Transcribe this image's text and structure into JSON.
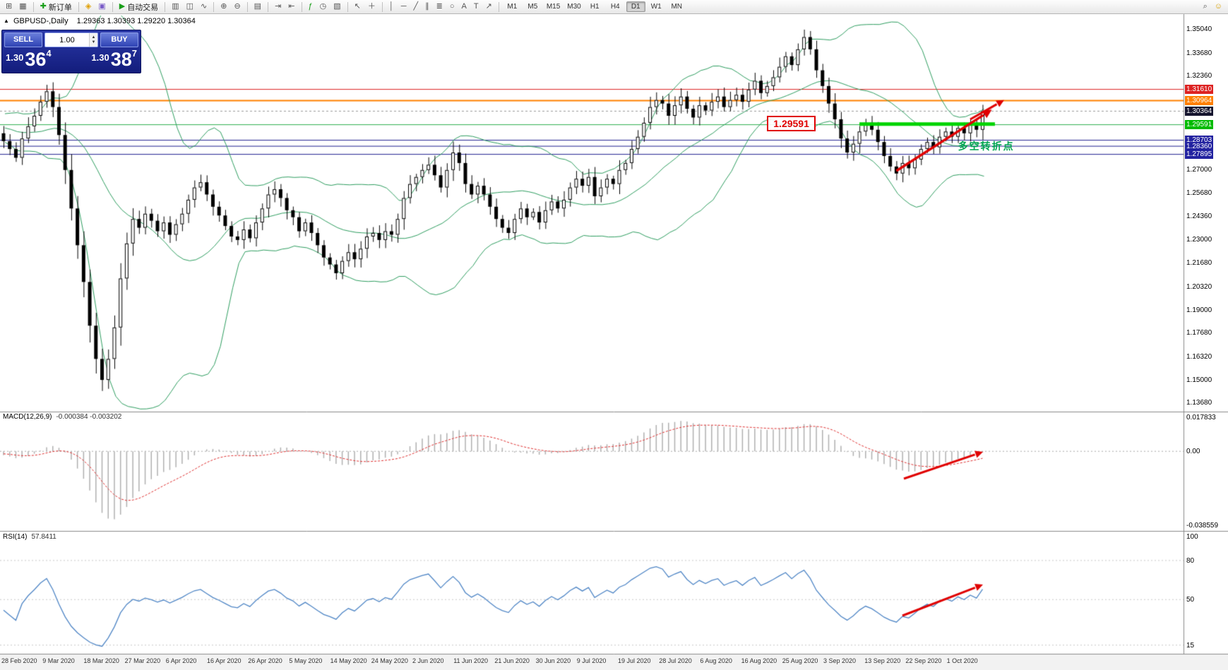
{
  "toolbar": {
    "groups": [
      {
        "items": [
          {
            "name": "new-chart-icon",
            "glyph": "⊞"
          },
          {
            "name": "profiles-icon",
            "glyph": "▦"
          }
        ]
      },
      {
        "items": [
          {
            "name": "new-order-button",
            "glyph": "✚",
            "glyph_color": "#1a9e1a",
            "label": "新订单"
          }
        ]
      },
      {
        "items": [
          {
            "name": "mql5-icon",
            "glyph": "◈",
            "glyph_color": "#e0a000"
          },
          {
            "name": "market-icon",
            "glyph": "▣",
            "glyph_color": "#7a5cc8"
          }
        ]
      },
      {
        "items": [
          {
            "name": "autotrading-button",
            "glyph": "▶",
            "glyph_color": "#1a9e1a",
            "label": "自动交易"
          }
        ]
      },
      {
        "items": [
          {
            "name": "bar-chart-icon",
            "glyph": "▥"
          },
          {
            "name": "candlestick-icon",
            "glyph": "◫"
          },
          {
            "name": "line-chart-icon",
            "glyph": "∿"
          }
        ]
      },
      {
        "items": [
          {
            "name": "zoom-in-icon",
            "glyph": "⊕"
          },
          {
            "name": "zoom-out-icon",
            "glyph": "⊖"
          }
        ]
      },
      {
        "items": [
          {
            "name": "tile-windows-icon",
            "glyph": "▤"
          }
        ]
      },
      {
        "items": [
          {
            "name": "auto-scroll-icon",
            "glyph": "⇥"
          },
          {
            "name": "chart-shift-icon",
            "glyph": "⇤"
          }
        ]
      },
      {
        "items": [
          {
            "name": "indicators-icon",
            "glyph": "ƒ",
            "glyph_color": "#1a9e1a"
          },
          {
            "name": "periods-icon",
            "glyph": "◷"
          },
          {
            "name": "templates-icon",
            "glyph": "▧"
          }
        ]
      },
      {
        "items": [
          {
            "name": "cursor-icon",
            "glyph": "↖"
          },
          {
            "name": "crosshair-icon",
            "glyph": "＋"
          }
        ]
      },
      {
        "items": [
          {
            "name": "vertical-line-icon",
            "glyph": "│"
          },
          {
            "name": "horizontal-line-icon",
            "glyph": "─"
          },
          {
            "name": "trendline-icon",
            "glyph": "╱"
          },
          {
            "name": "channel-icon",
            "glyph": "∥"
          },
          {
            "name": "fibonacci-icon",
            "glyph": "≣"
          },
          {
            "name": "shapes-icon",
            "glyph": "○"
          },
          {
            "name": "text-icon",
            "glyph": "A"
          },
          {
            "name": "label-icon",
            "glyph": "T"
          },
          {
            "name": "arrows-icon",
            "glyph": "↗"
          }
        ]
      }
    ],
    "timeframes": [
      "M1",
      "M5",
      "M15",
      "M30",
      "H1",
      "H4",
      "D1",
      "W1",
      "MN"
    ],
    "active_timeframe": "D1",
    "right_icons": [
      {
        "name": "search-icon",
        "glyph": "⌕"
      },
      {
        "name": "community-icon",
        "glyph": "☺",
        "glyph_color": "#d8a000"
      }
    ]
  },
  "chart_header": {
    "collapse_glyph": "▲",
    "symbol_period": "GBPUSD-,Daily",
    "ohlc": "1.29363 1.30393 1.29220 1.30364"
  },
  "trade_panel": {
    "sell_label": "SELL",
    "buy_label": "BUY",
    "lot": "1.00",
    "sell_price": {
      "small": "1.30",
      "big": "36",
      "sup": "4"
    },
    "buy_price": {
      "small": "1.30",
      "big": "38",
      "sup": "7"
    }
  },
  "main_chart": {
    "price_max": 1.3575,
    "price_min": 1.1335,
    "current_price": 1.30364,
    "axis_labels": [
      {
        "text": "1.35040",
        "price": 1.3504,
        "style": "plain"
      },
      {
        "text": "1.33680",
        "price": 1.3368,
        "style": "plain"
      },
      {
        "text": "1.32360",
        "price": 1.3236,
        "style": "plain"
      },
      {
        "text": "1.31610",
        "price": 1.3161,
        "style": "red"
      },
      {
        "text": "1.30964",
        "price": 1.30964,
        "style": "orange"
      },
      {
        "text": "1.30364",
        "price": 1.30364,
        "style": "current"
      },
      {
        "text": "1.29591",
        "price": 1.29591,
        "style": "green"
      },
      {
        "text": "1.28703",
        "price": 1.28703,
        "style": "blue"
      },
      {
        "text": "1.28360",
        "price": 1.2836,
        "style": "blue"
      },
      {
        "text": "1.27895",
        "price": 1.27895,
        "style": "blue"
      },
      {
        "text": "1.27000",
        "price": 1.27,
        "style": "plain"
      },
      {
        "text": "1.25680",
        "price": 1.2568,
        "style": "plain"
      },
      {
        "text": "1.24360",
        "price": 1.2436,
        "style": "plain"
      },
      {
        "text": "1.23000",
        "price": 1.23,
        "style": "plain"
      },
      {
        "text": "1.21680",
        "price": 1.2168,
        "style": "plain"
      },
      {
        "text": "1.20320",
        "price": 1.2032,
        "style": "plain"
      },
      {
        "text": "1.19000",
        "price": 1.19,
        "style": "plain"
      },
      {
        "text": "1.17680",
        "price": 1.1768,
        "style": "plain"
      },
      {
        "text": "1.16320",
        "price": 1.1632,
        "style": "plain"
      },
      {
        "text": "1.15000",
        "price": 1.15,
        "style": "plain"
      },
      {
        "text": "1.13680",
        "price": 1.1368,
        "style": "plain"
      }
    ],
    "levels": [
      {
        "price": 1.3161,
        "color": "#dd2222",
        "width": 1
      },
      {
        "price": 1.30964,
        "color": "#ff8000",
        "width": 2
      },
      {
        "price": 1.29591,
        "color": "#2faf4f",
        "width": 1
      },
      {
        "price": 1.28703,
        "color": "#202090",
        "width": 1
      },
      {
        "price": 1.2836,
        "color": "#202090",
        "width": 1
      },
      {
        "price": 1.27895,
        "color": "#202090",
        "width": 1
      }
    ],
    "annotations": {
      "price_box": {
        "text": "1.29591",
        "anchor_index": 124,
        "price": 1.301
      },
      "turning_point_text": {
        "text": "多空转折点",
        "anchor_index": 155,
        "price": 1.2845,
        "color": "#00a651"
      },
      "thick_support": {
        "price": 1.2963,
        "from_index": 139,
        "to_index": 161,
        "color": "#00d400",
        "width": 5
      },
      "trend_arrows": [
        {
          "from_index": 145,
          "from_price": 1.2695,
          "to_index": 160.5,
          "to_price": 1.3045,
          "width": 3.5
        },
        {
          "from_index": 157,
          "from_price": 1.299,
          "to_index": 162.5,
          "to_price": 1.31,
          "width": 3
        }
      ]
    }
  },
  "chart_data": {
    "type": "candlestick",
    "symbol": "GBPUSD",
    "period": "Daily",
    "ohlc_display": {
      "open": "1.29363",
      "high": "1.30393",
      "low": "1.29220",
      "close": "1.30364"
    },
    "warmup_closes": [
      1.296,
      1.299,
      1.302,
      1.298,
      1.294,
      1.297,
      1.3,
      1.295,
      1.292,
      1.295,
      1.298,
      1.294,
      1.29,
      1.293,
      1.296,
      1.292,
      1.288,
      1.291,
      1.289,
      1.291
    ],
    "closes": [
      1.2865,
      1.282,
      1.277,
      1.288,
      1.295,
      1.301,
      1.309,
      1.315,
      1.306,
      1.29,
      1.27,
      1.248,
      1.227,
      1.206,
      1.181,
      1.162,
      1.15,
      1.162,
      1.18,
      1.208,
      1.228,
      1.242,
      1.237,
      1.245,
      1.241,
      1.235,
      1.24,
      1.233,
      1.239,
      1.245,
      1.253,
      1.26,
      1.263,
      1.256,
      1.249,
      1.244,
      1.238,
      1.232,
      1.23,
      1.236,
      1.231,
      1.24,
      1.248,
      1.256,
      1.259,
      1.254,
      1.247,
      1.243,
      1.235,
      1.24,
      1.234,
      1.227,
      1.22,
      1.216,
      1.211,
      1.218,
      1.223,
      1.219,
      1.225,
      1.232,
      1.234,
      1.23,
      1.235,
      1.233,
      1.242,
      1.254,
      1.262,
      1.266,
      1.27,
      1.273,
      1.267,
      1.26,
      1.27,
      1.28,
      1.274,
      1.262,
      1.256,
      1.261,
      1.256,
      1.249,
      1.242,
      1.237,
      1.234,
      1.242,
      1.248,
      1.243,
      1.246,
      1.24,
      1.247,
      1.252,
      1.248,
      1.253,
      1.26,
      1.265,
      1.261,
      1.266,
      1.255,
      1.26,
      1.265,
      1.262,
      1.27,
      1.274,
      1.282,
      1.289,
      1.297,
      1.306,
      1.31,
      1.308,
      1.301,
      1.307,
      1.312,
      1.305,
      1.3,
      1.307,
      1.304,
      1.309,
      1.312,
      1.306,
      1.31,
      1.313,
      1.309,
      1.316,
      1.321,
      1.314,
      1.318,
      1.323,
      1.329,
      1.335,
      1.33,
      1.339,
      1.346,
      1.339,
      1.327,
      1.318,
      1.308,
      1.299,
      1.288,
      1.28,
      1.285,
      1.292,
      1.297,
      1.293,
      1.286,
      1.278,
      1.272,
      1.268,
      1.274,
      1.271,
      1.276,
      1.282,
      1.286,
      1.283,
      1.289,
      1.292,
      1.289,
      1.294,
      1.291,
      1.296,
      1.293,
      1.3036
    ],
    "x_labels": [
      "28 Feb 2020",
      "9 Mar 2020",
      "18 Mar 2020",
      "27 Mar 2020",
      "6 Apr 2020",
      "16 Apr 2020",
      "26 Apr 2020",
      "5 May 2020",
      "14 May 2020",
      "24 May 2020",
      "2 Jun 2020",
      "11 Jun 2020",
      "21 Jun 2020",
      "30 Jun 2020",
      "9 Jul 2020",
      "19 Jul 2020",
      "28 Jul 2020",
      "6 Aug 2020",
      "16 Aug 2020",
      "25 Aug 2020",
      "3 Sep 2020",
      "13 Sep 2020",
      "22 Sep 2020",
      "1 Oct 2020"
    ],
    "indicators": {
      "bollinger": {
        "period": 20,
        "deviation": 2,
        "color": "#2e9e60"
      },
      "macd": {
        "title": "MACD(12,26,9)",
        "values": "-0.000384 -0.003202",
        "axis_labels": [
          {
            "text": "0.017833",
            "value": 0.017833
          },
          {
            "text": "0.00",
            "value": 0
          },
          {
            "text": "-0.038559",
            "value": -0.038559
          }
        ],
        "max": 0.017833,
        "min": -0.038559,
        "histogram_color": "#b0b0b0",
        "signal_color": "#e03030"
      },
      "rsi": {
        "title": "RSI(14)",
        "value": "57.8411",
        "axis_labels": [
          {
            "text": "100",
            "value": 100
          },
          {
            "text": "80",
            "value": 80
          },
          {
            "text": "50",
            "value": 50
          },
          {
            "text": "15",
            "value": 15
          }
        ],
        "max": 100,
        "min": 10,
        "line_color": "#4f86c6"
      }
    }
  }
}
